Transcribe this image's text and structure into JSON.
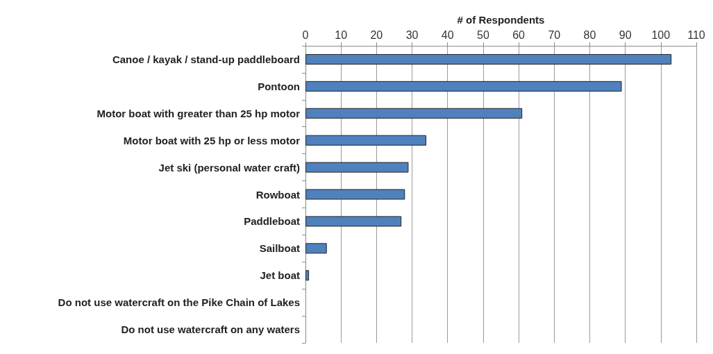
{
  "chart_data": {
    "type": "bar",
    "orientation": "horizontal",
    "xlabel": "# of Respondents",
    "categories": [
      "Canoe / kayak / stand-up paddleboard",
      "Pontoon",
      "Motor boat with greater than 25 hp motor",
      "Motor boat with 25 hp or less motor",
      "Jet ski (personal water craft)",
      "Rowboat",
      "Paddleboat",
      "Sailboat",
      "Jet boat",
      "Do not use watercraft on the Pike Chain of Lakes",
      "Do not use watercraft on any waters"
    ],
    "values": [
      103,
      89,
      61,
      34,
      29,
      28,
      27,
      6,
      1,
      0,
      0
    ],
    "color": "#4f81bd",
    "xlim": [
      0,
      110
    ],
    "xticks": [
      0,
      10,
      20,
      30,
      40,
      50,
      60,
      70,
      80,
      90,
      100,
      110
    ],
    "grid": "x"
  }
}
